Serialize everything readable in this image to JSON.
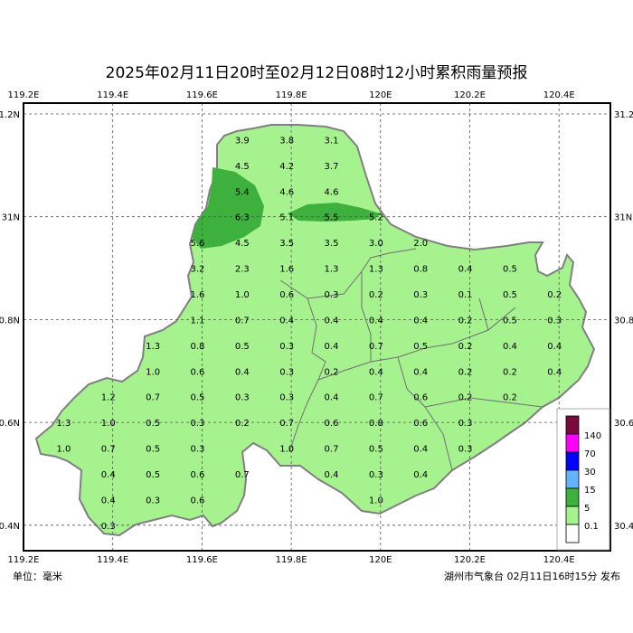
{
  "title": "2025年02月11日20时至02月12日08时12小时累积雨量预报",
  "footer": {
    "unit": "单位：毫米",
    "issuer": "湖州市气象台 02月11日16时15分 发布"
  },
  "axes": {
    "lon_ticks": [
      "119.2E",
      "119.4E",
      "119.6E",
      "119.8E",
      "120E",
      "120.2E",
      "120.4E"
    ],
    "lat_ticks_left": [
      "31.2N",
      "31N",
      "30.8N",
      "30.6N",
      "30.4N"
    ],
    "lat_ticks_right": [
      "31.2",
      "31N",
      "30.8",
      "30.6",
      "30.4"
    ]
  },
  "legend": {
    "items": [
      {
        "label": "140",
        "color": "#7a0a3c"
      },
      {
        "label": "70",
        "color": "#ff00ff"
      },
      {
        "label": "30",
        "color": "#0000ff"
      },
      {
        "label": "15",
        "color": "#66b3ff"
      },
      {
        "label": "5",
        "color": "#3db03d"
      },
      {
        "label": "0.1",
        "color": "#a6f28f"
      },
      {
        "label": "",
        "color": "#ffffff"
      }
    ]
  },
  "colors": {
    "land": "#a6f28f",
    "heavy": "#3db03d",
    "border": "#808080"
  },
  "stations": [
    {
      "v": "3.9",
      "lon": 119.69,
      "lat": 31.15
    },
    {
      "v": "3.8",
      "lon": 119.79,
      "lat": 31.15
    },
    {
      "v": "3.1",
      "lon": 119.89,
      "lat": 31.15
    },
    {
      "v": "4.5",
      "lon": 119.69,
      "lat": 31.1
    },
    {
      "v": "4.2",
      "lon": 119.79,
      "lat": 31.1
    },
    {
      "v": "3.7",
      "lon": 119.89,
      "lat": 31.1
    },
    {
      "v": "5.4",
      "lon": 119.69,
      "lat": 31.05
    },
    {
      "v": "4.6",
      "lon": 119.79,
      "lat": 31.05
    },
    {
      "v": "4.6",
      "lon": 119.89,
      "lat": 31.05
    },
    {
      "v": "6.3",
      "lon": 119.69,
      "lat": 31.0
    },
    {
      "v": "5.1",
      "lon": 119.79,
      "lat": 31.0
    },
    {
      "v": "5.5",
      "lon": 119.89,
      "lat": 31.0
    },
    {
      "v": "5.2",
      "lon": 119.99,
      "lat": 31.0
    },
    {
      "v": "5.6",
      "lon": 119.59,
      "lat": 30.95
    },
    {
      "v": "4.5",
      "lon": 119.69,
      "lat": 30.95
    },
    {
      "v": "3.5",
      "lon": 119.79,
      "lat": 30.95
    },
    {
      "v": "3.5",
      "lon": 119.89,
      "lat": 30.95
    },
    {
      "v": "3.0",
      "lon": 119.99,
      "lat": 30.95
    },
    {
      "v": "2.0",
      "lon": 120.09,
      "lat": 30.95
    },
    {
      "v": "3.2",
      "lon": 119.59,
      "lat": 30.9
    },
    {
      "v": "2.3",
      "lon": 119.69,
      "lat": 30.9
    },
    {
      "v": "1.6",
      "lon": 119.79,
      "lat": 30.9
    },
    {
      "v": "1.3",
      "lon": 119.89,
      "lat": 30.9
    },
    {
      "v": "1.3",
      "lon": 119.99,
      "lat": 30.9
    },
    {
      "v": "0.8",
      "lon": 120.09,
      "lat": 30.9
    },
    {
      "v": "0.4",
      "lon": 120.19,
      "lat": 30.9
    },
    {
      "v": "0.5",
      "lon": 120.29,
      "lat": 30.9
    },
    {
      "v": "1.6",
      "lon": 119.59,
      "lat": 30.85
    },
    {
      "v": "1.0",
      "lon": 119.69,
      "lat": 30.85
    },
    {
      "v": "0.6",
      "lon": 119.79,
      "lat": 30.85
    },
    {
      "v": "0.3",
      "lon": 119.89,
      "lat": 30.85
    },
    {
      "v": "0.2",
      "lon": 119.99,
      "lat": 30.85
    },
    {
      "v": "0.3",
      "lon": 120.09,
      "lat": 30.85
    },
    {
      "v": "0.1",
      "lon": 120.19,
      "lat": 30.85
    },
    {
      "v": "0.5",
      "lon": 120.29,
      "lat": 30.85
    },
    {
      "v": "0.2",
      "lon": 120.39,
      "lat": 30.85
    },
    {
      "v": "1.1",
      "lon": 119.59,
      "lat": 30.8
    },
    {
      "v": "0.7",
      "lon": 119.69,
      "lat": 30.8
    },
    {
      "v": "0.4",
      "lon": 119.79,
      "lat": 30.8
    },
    {
      "v": "0.4",
      "lon": 119.89,
      "lat": 30.8
    },
    {
      "v": "0.4",
      "lon": 119.99,
      "lat": 30.8
    },
    {
      "v": "0.4",
      "lon": 120.09,
      "lat": 30.8
    },
    {
      "v": "0.2",
      "lon": 120.19,
      "lat": 30.8
    },
    {
      "v": "0.5",
      "lon": 120.29,
      "lat": 30.8
    },
    {
      "v": "0.3",
      "lon": 120.39,
      "lat": 30.8
    },
    {
      "v": "1.3",
      "lon": 119.49,
      "lat": 30.75
    },
    {
      "v": "0.8",
      "lon": 119.59,
      "lat": 30.75
    },
    {
      "v": "0.5",
      "lon": 119.69,
      "lat": 30.75
    },
    {
      "v": "0.3",
      "lon": 119.79,
      "lat": 30.75
    },
    {
      "v": "0.4",
      "lon": 119.89,
      "lat": 30.75
    },
    {
      "v": "0.7",
      "lon": 119.99,
      "lat": 30.75
    },
    {
      "v": "0.5",
      "lon": 120.09,
      "lat": 30.75
    },
    {
      "v": "0.2",
      "lon": 120.19,
      "lat": 30.75
    },
    {
      "v": "0.4",
      "lon": 120.29,
      "lat": 30.75
    },
    {
      "v": "0.4",
      "lon": 120.39,
      "lat": 30.75
    },
    {
      "v": "1.0",
      "lon": 119.49,
      "lat": 30.7
    },
    {
      "v": "0.6",
      "lon": 119.59,
      "lat": 30.7
    },
    {
      "v": "0.4",
      "lon": 119.69,
      "lat": 30.7
    },
    {
      "v": "0.3",
      "lon": 119.79,
      "lat": 30.7
    },
    {
      "v": "0.2",
      "lon": 119.89,
      "lat": 30.7
    },
    {
      "v": "0.4",
      "lon": 119.99,
      "lat": 30.7
    },
    {
      "v": "0.4",
      "lon": 120.09,
      "lat": 30.7
    },
    {
      "v": "0.2",
      "lon": 120.19,
      "lat": 30.7
    },
    {
      "v": "0.2",
      "lon": 120.29,
      "lat": 30.7
    },
    {
      "v": "0.4",
      "lon": 120.39,
      "lat": 30.7
    },
    {
      "v": "1.2",
      "lon": 119.39,
      "lat": 30.65
    },
    {
      "v": "0.7",
      "lon": 119.49,
      "lat": 30.65
    },
    {
      "v": "0.5",
      "lon": 119.59,
      "lat": 30.65
    },
    {
      "v": "0.3",
      "lon": 119.69,
      "lat": 30.65
    },
    {
      "v": "0.3",
      "lon": 119.79,
      "lat": 30.65
    },
    {
      "v": "0.4",
      "lon": 119.89,
      "lat": 30.65
    },
    {
      "v": "0.7",
      "lon": 119.99,
      "lat": 30.65
    },
    {
      "v": "0.6",
      "lon": 120.09,
      "lat": 30.65
    },
    {
      "v": "0.2",
      "lon": 120.19,
      "lat": 30.65
    },
    {
      "v": "0.2",
      "lon": 120.29,
      "lat": 30.65
    },
    {
      "v": "1.3",
      "lon": 119.29,
      "lat": 30.6
    },
    {
      "v": "1.0",
      "lon": 119.39,
      "lat": 30.6
    },
    {
      "v": "0.5",
      "lon": 119.49,
      "lat": 30.6
    },
    {
      "v": "0.3",
      "lon": 119.59,
      "lat": 30.6
    },
    {
      "v": "0.2",
      "lon": 119.69,
      "lat": 30.6
    },
    {
      "v": "0.7",
      "lon": 119.79,
      "lat": 30.6
    },
    {
      "v": "0.6",
      "lon": 119.89,
      "lat": 30.6
    },
    {
      "v": "0.8",
      "lon": 119.99,
      "lat": 30.6
    },
    {
      "v": "0.6",
      "lon": 120.09,
      "lat": 30.6
    },
    {
      "v": "0.3",
      "lon": 120.19,
      "lat": 30.6
    },
    {
      "v": "1.0",
      "lon": 119.29,
      "lat": 30.55
    },
    {
      "v": "0.7",
      "lon": 119.39,
      "lat": 30.55
    },
    {
      "v": "0.5",
      "lon": 119.49,
      "lat": 30.55
    },
    {
      "v": "0.3",
      "lon": 119.59,
      "lat": 30.55
    },
    {
      "v": "1.0",
      "lon": 119.79,
      "lat": 30.55
    },
    {
      "v": "0.7",
      "lon": 119.89,
      "lat": 30.55
    },
    {
      "v": "0.5",
      "lon": 119.99,
      "lat": 30.55
    },
    {
      "v": "0.4",
      "lon": 120.09,
      "lat": 30.55
    },
    {
      "v": "0.3",
      "lon": 120.19,
      "lat": 30.55
    },
    {
      "v": "0.4",
      "lon": 119.39,
      "lat": 30.5
    },
    {
      "v": "0.5",
      "lon": 119.49,
      "lat": 30.5
    },
    {
      "v": "0.6",
      "lon": 119.59,
      "lat": 30.5
    },
    {
      "v": "0.7",
      "lon": 119.69,
      "lat": 30.5
    },
    {
      "v": "0.4",
      "lon": 119.89,
      "lat": 30.5
    },
    {
      "v": "0.3",
      "lon": 119.99,
      "lat": 30.5
    },
    {
      "v": "0.4",
      "lon": 120.09,
      "lat": 30.5
    },
    {
      "v": "0.4",
      "lon": 119.39,
      "lat": 30.45
    },
    {
      "v": "0.3",
      "lon": 119.49,
      "lat": 30.45
    },
    {
      "v": "0.6",
      "lon": 119.59,
      "lat": 30.45
    },
    {
      "v": "1.0",
      "lon": 119.99,
      "lat": 30.45
    },
    {
      "v": "0.3",
      "lon": 119.39,
      "lat": 30.4
    }
  ]
}
